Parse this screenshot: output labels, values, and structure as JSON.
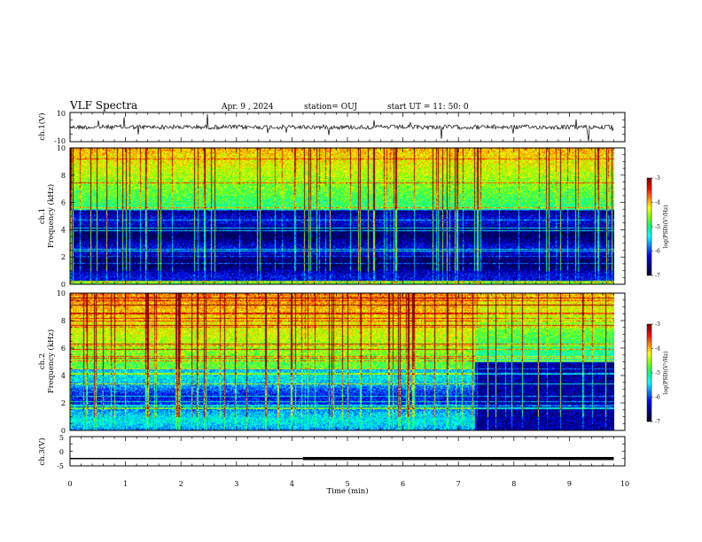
{
  "header": {
    "title": "VLF Spectra",
    "date": "Apr. 9 , 2024",
    "station": "station= OUJ",
    "start": "start UT =  11: 50: 0"
  },
  "colors": {
    "bg": "#ffffff",
    "axis": "#000000",
    "colormap": [
      "#000033",
      "#000080",
      "#0000ff",
      "#0080ff",
      "#00ffff",
      "#00ff80",
      "#80ff00",
      "#ffff00",
      "#ff8000",
      "#ff0000",
      "#800000"
    ]
  },
  "chart_data": [
    {
      "panel": "ch1-waveform",
      "type": "line",
      "ylabel": "ch.1(V)",
      "ylim": [
        -10,
        10
      ],
      "yticks": [
        "10",
        "-10"
      ],
      "xlim": [
        0,
        10
      ],
      "description_values": {
        "baseline_v": 0
      }
    },
    {
      "panel": "ch1-spectrogram",
      "type": "heatmap",
      "ylabel": "ch.1\nFrequency (kHz)",
      "ylabel_line1": "ch.1",
      "ylabel_line2": "Frequency (kHz)",
      "ylim": [
        0,
        10
      ],
      "yticks": [
        "0",
        "2",
        "4",
        "6",
        "8",
        "10"
      ],
      "xlim": [
        0,
        10
      ],
      "colorbar": {
        "label": "log(PSD)(V²/Hz)",
        "ticks": [
          "-3",
          "-4",
          "-5",
          "-6",
          "-7"
        ],
        "range": [
          -7,
          -3
        ]
      },
      "profile": {
        "low_freq_khz": 5.5,
        "quiet_band_khz": [
          0,
          5.5
        ],
        "active_band_khz": [
          5.5,
          10
        ]
      }
    },
    {
      "panel": "ch2-spectrogram",
      "type": "heatmap",
      "ylabel_line1": "ch.2",
      "ylabel_line2": "Frequency (kHz)",
      "ylim": [
        0,
        10
      ],
      "yticks": [
        "0",
        "2",
        "4",
        "6",
        "8",
        "10"
      ],
      "xlim": [
        0,
        10
      ],
      "colorbar": {
        "label": "log(PSD)(V²/Hz)",
        "ticks": [
          "-3",
          "-4",
          "-5",
          "-6",
          "-7"
        ],
        "range": [
          -7,
          -3
        ]
      },
      "profile": {
        "change_time_min": 7.3,
        "quiet_band_before_khz": [
          0,
          4.5
        ],
        "quiet_band_after_khz": [
          0,
          5
        ]
      }
    },
    {
      "panel": "ch3-waveform",
      "type": "line",
      "ylabel": "ch.3(V)",
      "ylim": [
        -5,
        5
      ],
      "yticks": [
        "5",
        "0",
        "-5"
      ],
      "xlim": [
        0,
        10
      ],
      "xlabel": "Time  (min)",
      "xticks": [
        "0",
        "1",
        "2",
        "3",
        "4",
        "5",
        "6",
        "7",
        "8",
        "9",
        "10"
      ],
      "level_v": -2.5,
      "thick_from_min": 4.2,
      "end_min": 9.8
    }
  ]
}
